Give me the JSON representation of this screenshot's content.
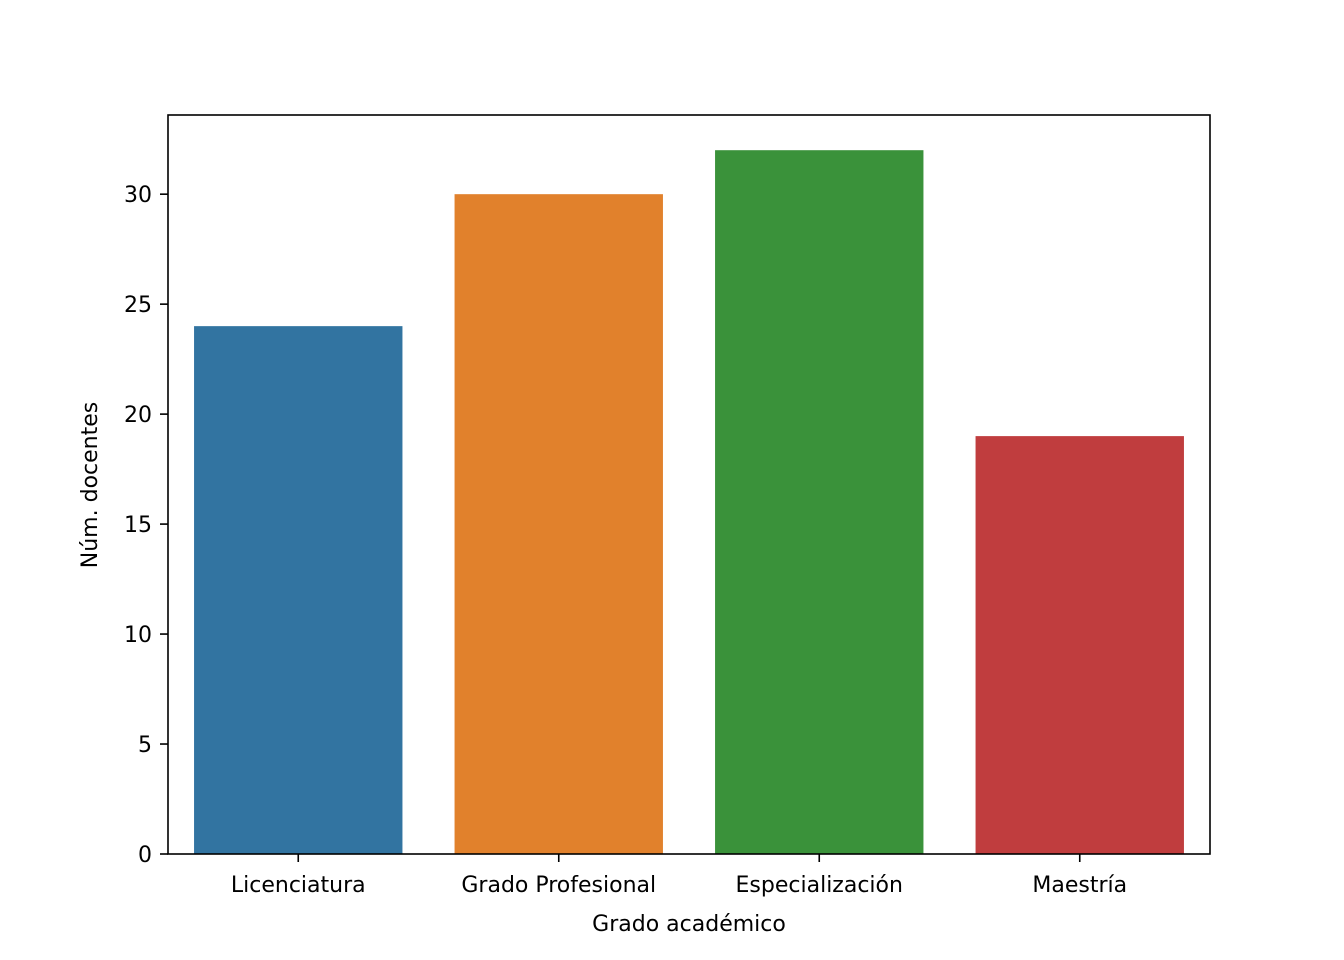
{
  "chart_data": {
    "type": "bar",
    "title": "",
    "xlabel": "Grado académico",
    "ylabel": "Núm. docentes",
    "categories": [
      "Licenciatura",
      "Grado Profesional",
      "Especialización",
      "Maestría"
    ],
    "values": [
      24,
      30,
      32,
      19
    ],
    "colors": [
      "#3274a1",
      "#e1812c",
      "#3a923a",
      "#c03d3e"
    ],
    "ylim": [
      0,
      33.6
    ],
    "yticks": [
      0,
      5,
      10,
      15,
      20,
      25,
      30
    ],
    "ytick_labels": [
      "0",
      "5",
      "10",
      "15",
      "20",
      "25",
      "30"
    ],
    "grid": false,
    "legend": "none"
  }
}
